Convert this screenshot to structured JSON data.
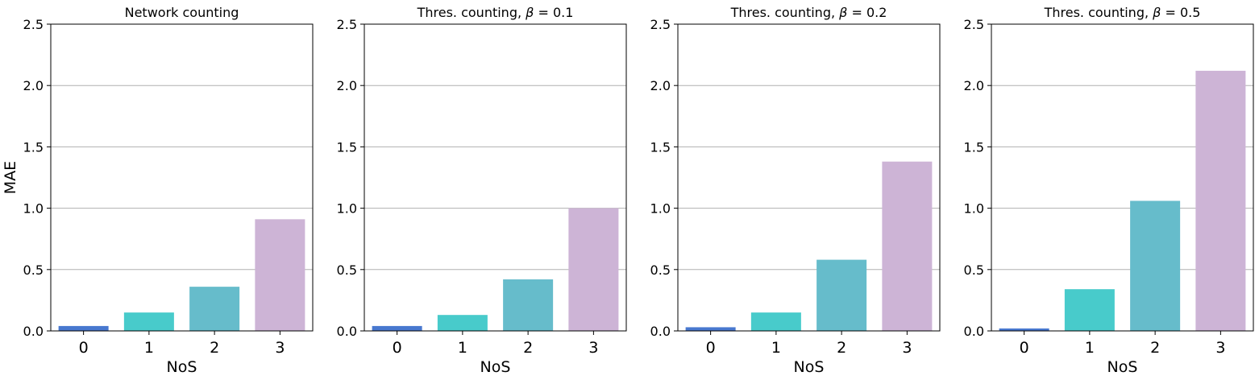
{
  "chart_data": [
    {
      "type": "bar",
      "title": "Network counting",
      "xlabel": "NoS",
      "ylabel": "MAE",
      "categories": [
        "0",
        "1",
        "2",
        "3"
      ],
      "values": [
        0.04,
        0.15,
        0.36,
        0.91
      ],
      "ylim": [
        0,
        2.5
      ],
      "yticks": [
        "0.0",
        "0.5",
        "1.0",
        "1.5",
        "2.0",
        "2.5"
      ],
      "grid": "horizontal"
    },
    {
      "type": "bar",
      "title_prefix": "Thres. counting, ",
      "title_symbol": "β",
      "title_suffix": " = 0.1",
      "xlabel": "NoS",
      "ylabel": "",
      "categories": [
        "0",
        "1",
        "2",
        "3"
      ],
      "values": [
        0.04,
        0.13,
        0.42,
        1.0
      ],
      "ylim": [
        0,
        2.5
      ],
      "yticks": [
        "0.0",
        "0.5",
        "1.0",
        "1.5",
        "2.0",
        "2.5"
      ],
      "grid": "horizontal"
    },
    {
      "type": "bar",
      "title_prefix": "Thres. counting, ",
      "title_symbol": "β",
      "title_suffix": " = 0.2",
      "xlabel": "NoS",
      "ylabel": "",
      "categories": [
        "0",
        "1",
        "2",
        "3"
      ],
      "values": [
        0.03,
        0.15,
        0.58,
        1.38
      ],
      "ylim": [
        0,
        2.5
      ],
      "yticks": [
        "0.0",
        "0.5",
        "1.0",
        "1.5",
        "2.0",
        "2.5"
      ],
      "grid": "horizontal"
    },
    {
      "type": "bar",
      "title_prefix": "Thres. counting, ",
      "title_symbol": "β",
      "title_suffix": " = 0.5",
      "xlabel": "NoS",
      "ylabel": "",
      "categories": [
        "0",
        "1",
        "2",
        "3"
      ],
      "values": [
        0.02,
        0.34,
        1.06,
        2.12
      ],
      "ylim": [
        0,
        2.5
      ],
      "yticks": [
        "0.0",
        "0.5",
        "1.0",
        "1.5",
        "2.0",
        "2.5"
      ],
      "grid": "horizontal"
    }
  ],
  "bar_colors": [
    "#4878cf",
    "#48cbcb",
    "#66bccb",
    "#cdb4d6"
  ]
}
